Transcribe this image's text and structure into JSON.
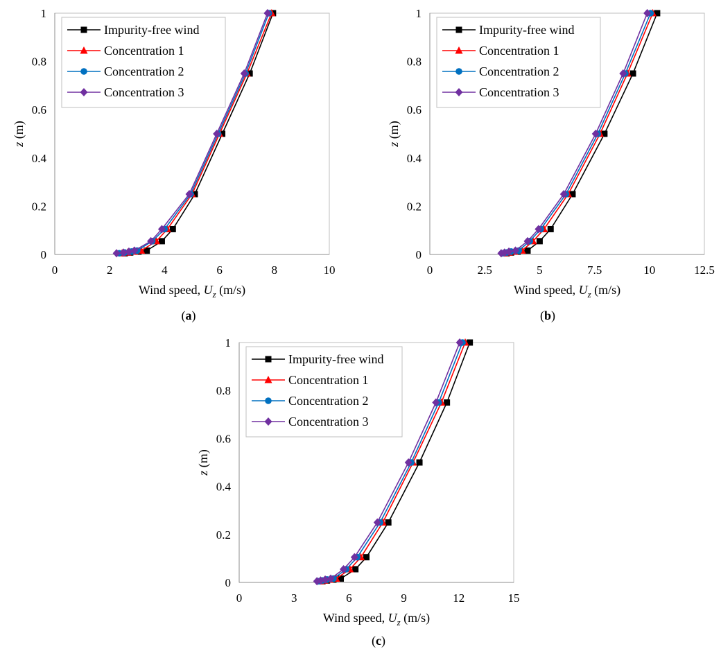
{
  "chart_data": [
    {
      "type": "line",
      "panel_label": "(a)",
      "panel_letter": "a",
      "xlabel_prefix": "Wind speed, ",
      "xlabel_var": "U",
      "xlabel_sub": "z",
      "xlabel_unit": " (m/s)",
      "ylabel_var": "z",
      "ylabel_unit": " (m)",
      "xlim": [
        0,
        10
      ],
      "ylim": [
        0,
        1
      ],
      "x_ticks": [
        "0",
        "2",
        "4",
        "6",
        "8",
        "10"
      ],
      "y_ticks": [
        "0",
        "0.2",
        "0.4",
        "0.6",
        "0.8",
        "1"
      ],
      "legend_position": "top-left",
      "series": [
        {
          "name": "Impurity-free wind",
          "color": "#000000",
          "marker": "square",
          "x": [
            2.55,
            2.75,
            3.05,
            3.35,
            3.9,
            4.3,
            5.1,
            6.1,
            7.1,
            7.95
          ],
          "y": [
            0.005,
            0.008,
            0.012,
            0.016,
            0.055,
            0.105,
            0.25,
            0.5,
            0.75,
            1.0
          ]
        },
        {
          "name": "Concentration 1",
          "color": "#ff0000",
          "marker": "triangle",
          "x": [
            2.45,
            2.65,
            2.9,
            3.15,
            3.7,
            4.1,
            5.0,
            6.0,
            7.0,
            7.9
          ],
          "y": [
            0.005,
            0.008,
            0.012,
            0.016,
            0.055,
            0.105,
            0.25,
            0.5,
            0.75,
            1.0
          ]
        },
        {
          "name": "Concentration 2",
          "color": "#0070c0",
          "marker": "circle",
          "x": [
            2.35,
            2.55,
            2.8,
            3.0,
            3.55,
            4.0,
            4.95,
            5.95,
            6.95,
            7.8
          ],
          "y": [
            0.005,
            0.008,
            0.012,
            0.016,
            0.055,
            0.105,
            0.25,
            0.5,
            0.75,
            1.0
          ]
        },
        {
          "name": "Concentration 3",
          "color": "#7030a0",
          "marker": "diamond",
          "x": [
            2.25,
            2.5,
            2.7,
            2.9,
            3.5,
            3.9,
            4.9,
            5.9,
            6.9,
            7.75
          ],
          "y": [
            0.005,
            0.008,
            0.012,
            0.016,
            0.055,
            0.105,
            0.25,
            0.5,
            0.75,
            1.0
          ]
        }
      ]
    },
    {
      "type": "line",
      "panel_label": "(b)",
      "panel_letter": "b",
      "xlabel_prefix": "Wind speed, ",
      "xlabel_var": "U",
      "xlabel_sub": "z",
      "xlabel_unit": " (m/s)",
      "ylabel_var": "z",
      "ylabel_unit": " (m)",
      "xlim": [
        0,
        12.5
      ],
      "ylim": [
        0,
        1
      ],
      "x_ticks": [
        "0",
        "2.5",
        "5",
        "7.5",
        "10",
        "12.5"
      ],
      "y_ticks": [
        "0",
        "0.2",
        "0.4",
        "0.6",
        "0.8",
        "1"
      ],
      "legend_position": "top-left",
      "series": [
        {
          "name": "Impurity-free wind",
          "color": "#000000",
          "marker": "square",
          "x": [
            3.5,
            3.7,
            4.0,
            4.45,
            5.0,
            5.5,
            6.5,
            7.95,
            9.25,
            10.35
          ],
          "y": [
            0.005,
            0.008,
            0.012,
            0.016,
            0.055,
            0.105,
            0.25,
            0.5,
            0.75,
            1.0
          ]
        },
        {
          "name": "Concentration 1",
          "color": "#ff0000",
          "marker": "triangle",
          "x": [
            3.4,
            3.6,
            3.85,
            4.2,
            4.7,
            5.2,
            6.3,
            7.75,
            9.0,
            10.15
          ],
          "y": [
            0.005,
            0.008,
            0.012,
            0.016,
            0.055,
            0.105,
            0.25,
            0.5,
            0.75,
            1.0
          ]
        },
        {
          "name": "Concentration 2",
          "color": "#0070c0",
          "marker": "circle",
          "x": [
            3.3,
            3.5,
            3.7,
            4.05,
            4.55,
            5.05,
            6.2,
            7.65,
            8.9,
            10.05
          ],
          "y": [
            0.005,
            0.008,
            0.012,
            0.016,
            0.055,
            0.105,
            0.25,
            0.5,
            0.75,
            1.0
          ]
        },
        {
          "name": "Concentration 3",
          "color": "#7030a0",
          "marker": "diamond",
          "x": [
            3.25,
            3.4,
            3.6,
            3.9,
            4.45,
            4.95,
            6.1,
            7.55,
            8.8,
            9.9
          ],
          "y": [
            0.005,
            0.008,
            0.012,
            0.016,
            0.055,
            0.105,
            0.25,
            0.5,
            0.75,
            1.0
          ]
        }
      ]
    },
    {
      "type": "line",
      "panel_label": "(c)",
      "panel_letter": "c",
      "xlabel_prefix": "Wind speed, ",
      "xlabel_var": "U",
      "xlabel_sub": "z",
      "xlabel_unit": " (m/s)",
      "ylabel_var": "z",
      "ylabel_unit": " (m)",
      "xlim": [
        0,
        15
      ],
      "ylim": [
        0,
        1
      ],
      "x_ticks": [
        "0",
        "3",
        "6",
        "9",
        "12",
        "15"
      ],
      "y_ticks": [
        "0",
        "0.2",
        "0.4",
        "0.6",
        "0.8",
        "1"
      ],
      "legend_position": "top-left",
      "series": [
        {
          "name": "Impurity-free wind",
          "color": "#000000",
          "marker": "square",
          "x": [
            4.55,
            4.8,
            5.15,
            5.55,
            6.35,
            6.95,
            8.15,
            9.85,
            11.35,
            12.6
          ],
          "y": [
            0.005,
            0.008,
            0.012,
            0.016,
            0.055,
            0.105,
            0.25,
            0.5,
            0.75,
            1.0
          ]
        },
        {
          "name": "Concentration 1",
          "color": "#ff0000",
          "marker": "triangle",
          "x": [
            4.45,
            4.65,
            4.95,
            5.3,
            6.05,
            6.65,
            7.85,
            9.5,
            11.05,
            12.35
          ],
          "y": [
            0.005,
            0.008,
            0.012,
            0.016,
            0.055,
            0.105,
            0.25,
            0.5,
            0.75,
            1.0
          ]
        },
        {
          "name": "Concentration 2",
          "color": "#0070c0",
          "marker": "circle",
          "x": [
            4.35,
            4.55,
            4.8,
            5.15,
            5.85,
            6.45,
            7.7,
            9.4,
            10.9,
            12.2
          ],
          "y": [
            0.005,
            0.008,
            0.012,
            0.016,
            0.055,
            0.105,
            0.25,
            0.5,
            0.75,
            1.0
          ]
        },
        {
          "name": "Concentration 3",
          "color": "#7030a0",
          "marker": "diamond",
          "x": [
            4.25,
            4.45,
            4.7,
            5.0,
            5.7,
            6.3,
            7.55,
            9.25,
            10.75,
            12.05
          ],
          "y": [
            0.005,
            0.008,
            0.012,
            0.016,
            0.055,
            0.105,
            0.25,
            0.5,
            0.75,
            1.0
          ]
        }
      ]
    }
  ]
}
